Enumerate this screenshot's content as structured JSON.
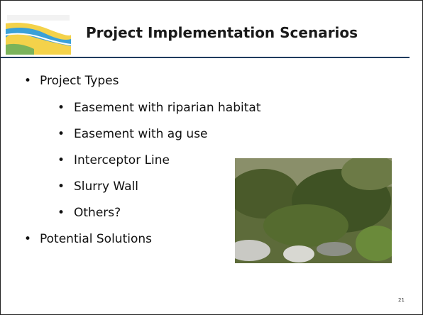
{
  "slide": {
    "title": "Project Implementation Scenarios",
    "bullets": [
      {
        "text": "Project Types",
        "sub": [
          "Easement with riparian habitat",
          "Easement with ag use",
          "Interceptor Line",
          "Slurry Wall",
          "Others?"
        ]
      },
      {
        "text": "Potential Solutions"
      }
    ],
    "page_number": "21"
  }
}
